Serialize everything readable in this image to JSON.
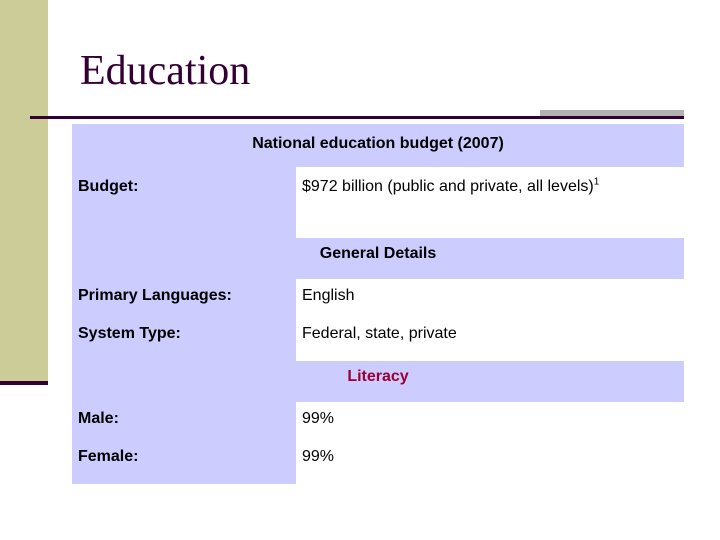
{
  "slide": {
    "title": "Education"
  },
  "table": {
    "header": "National education budget (2007)",
    "budget_label": "Budget:",
    "budget_value": "$972 billion (public and private, all levels)",
    "budget_footnote": "1",
    "general_header": "General Details",
    "languages_label": "Primary Languages:",
    "languages_value": "English",
    "system_label": "System Type:",
    "system_value": "Federal, state, private",
    "literacy_header": "Literacy",
    "male_label": "Male:",
    "male_value": "99%",
    "female_label": "Female:",
    "female_value": "99%"
  },
  "colors": {
    "title": "#330033",
    "table_fill": "#ccccff",
    "side_bar": "#cccc99",
    "literacy_accent": "#990033"
  }
}
